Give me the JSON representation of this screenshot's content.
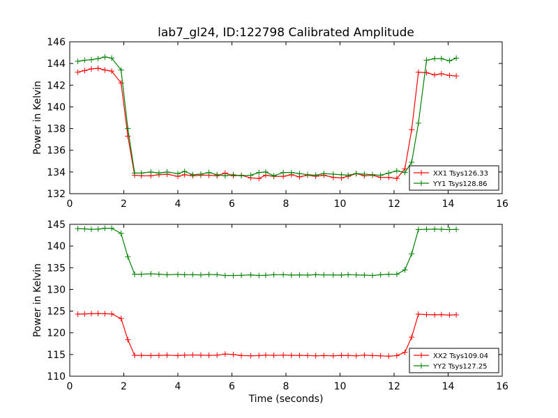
{
  "chart_data": [
    {
      "type": "line",
      "title": "lab7_gl24, ID:122798 Calibrated Amplitude",
      "xlabel": "",
      "ylabel": "Power in Kelvin",
      "xlim": [
        0,
        16
      ],
      "ylim": [
        132,
        146
      ],
      "xticks": [
        0,
        2,
        4,
        6,
        8,
        10,
        12,
        14,
        16
      ],
      "yticks": [
        132,
        134,
        136,
        138,
        140,
        142,
        144,
        146
      ],
      "grid": false,
      "legend_position": "bottom-right",
      "x": [
        0.3,
        0.55,
        0.8,
        1.05,
        1.3,
        1.55,
        1.9,
        2.15,
        2.4,
        2.65,
        3.0,
        3.3,
        3.6,
        4.0,
        4.25,
        4.55,
        4.85,
        5.15,
        5.45,
        5.75,
        6.05,
        6.35,
        6.7,
        7.0,
        7.25,
        7.55,
        7.9,
        8.2,
        8.5,
        8.8,
        9.1,
        9.4,
        9.75,
        10.05,
        10.3,
        10.6,
        10.9,
        11.2,
        11.5,
        11.8,
        12.1,
        12.4,
        12.65,
        12.9,
        13.2,
        13.5,
        13.75,
        14.05,
        14.3
      ],
      "series": [
        {
          "name": "XX1 Tsys126.33",
          "color": "#ff0000",
          "marker": "+",
          "values": [
            143.2,
            143.35,
            143.5,
            143.55,
            143.4,
            143.3,
            142.2,
            137.3,
            133.7,
            133.65,
            133.65,
            133.75,
            133.8,
            133.6,
            133.75,
            133.65,
            133.7,
            133.7,
            133.65,
            133.9,
            133.65,
            133.7,
            133.45,
            133.4,
            133.7,
            133.6,
            133.6,
            133.75,
            133.55,
            133.7,
            133.6,
            133.7,
            133.5,
            133.45,
            133.6,
            133.85,
            133.65,
            133.7,
            133.5,
            133.5,
            133.4,
            134.3,
            137.9,
            143.2,
            143.15,
            142.95,
            143.05,
            142.9,
            142.85
          ]
        },
        {
          "name": "YY1 Tsys128.86",
          "color": "#008000",
          "marker": "+",
          "values": [
            144.2,
            144.3,
            144.35,
            144.45,
            144.6,
            144.5,
            143.4,
            138.0,
            133.9,
            133.9,
            134.0,
            133.9,
            134.0,
            133.85,
            134.05,
            133.75,
            133.8,
            133.95,
            133.75,
            133.65,
            133.75,
            133.65,
            133.7,
            133.95,
            134.0,
            133.65,
            133.95,
            133.95,
            133.85,
            133.75,
            133.7,
            133.85,
            133.8,
            133.75,
            133.7,
            133.85,
            133.8,
            133.75,
            133.7,
            133.9,
            134.1,
            133.95,
            134.9,
            138.5,
            144.3,
            144.45,
            144.45,
            144.25,
            144.5
          ]
        }
      ]
    },
    {
      "type": "line",
      "title": "",
      "xlabel": "Time (seconds)",
      "ylabel": "Power in Kelvin",
      "xlim": [
        0,
        16
      ],
      "ylim": [
        110,
        145
      ],
      "xticks": [
        0,
        2,
        4,
        6,
        8,
        10,
        12,
        14,
        16
      ],
      "yticks": [
        110,
        115,
        120,
        125,
        130,
        135,
        140,
        145
      ],
      "grid": false,
      "legend_position": "bottom-right",
      "x": [
        0.3,
        0.55,
        0.8,
        1.05,
        1.3,
        1.55,
        1.9,
        2.15,
        2.4,
        2.65,
        3.0,
        3.3,
        3.6,
        4.0,
        4.25,
        4.55,
        4.85,
        5.15,
        5.45,
        5.75,
        6.05,
        6.35,
        6.7,
        7.0,
        7.25,
        7.55,
        7.9,
        8.2,
        8.5,
        8.8,
        9.1,
        9.4,
        9.75,
        10.05,
        10.3,
        10.6,
        10.9,
        11.2,
        11.5,
        11.8,
        12.1,
        12.4,
        12.65,
        12.9,
        13.2,
        13.5,
        13.75,
        14.05,
        14.3
      ],
      "series": [
        {
          "name": "XX2 Tsys109.04",
          "color": "#ff0000",
          "marker": "+",
          "values": [
            124.3,
            124.35,
            124.4,
            124.45,
            124.4,
            124.35,
            123.3,
            118.4,
            114.8,
            114.8,
            114.75,
            114.8,
            114.85,
            114.75,
            114.85,
            114.9,
            114.85,
            114.8,
            114.85,
            115.1,
            115.0,
            114.75,
            114.7,
            114.75,
            114.85,
            114.8,
            114.85,
            114.8,
            114.8,
            114.75,
            114.7,
            114.75,
            114.7,
            114.8,
            114.75,
            114.7,
            114.85,
            114.75,
            114.7,
            114.6,
            114.75,
            115.5,
            119.0,
            124.3,
            124.2,
            124.15,
            124.2,
            124.1,
            124.15
          ]
        },
        {
          "name": "YY2 Tsys127.25",
          "color": "#008000",
          "marker": "+",
          "values": [
            144.0,
            143.95,
            143.85,
            143.9,
            144.1,
            144.1,
            142.9,
            137.5,
            133.5,
            133.5,
            133.6,
            133.5,
            133.4,
            133.45,
            133.4,
            133.4,
            133.35,
            133.45,
            133.4,
            133.2,
            133.2,
            133.25,
            133.35,
            133.2,
            133.25,
            133.4,
            133.4,
            133.3,
            133.35,
            133.3,
            133.4,
            133.35,
            133.35,
            133.3,
            133.4,
            133.35,
            133.3,
            133.2,
            133.4,
            133.5,
            133.5,
            134.5,
            138.2,
            143.8,
            143.85,
            143.9,
            143.85,
            143.8,
            143.85
          ]
        }
      ]
    }
  ]
}
